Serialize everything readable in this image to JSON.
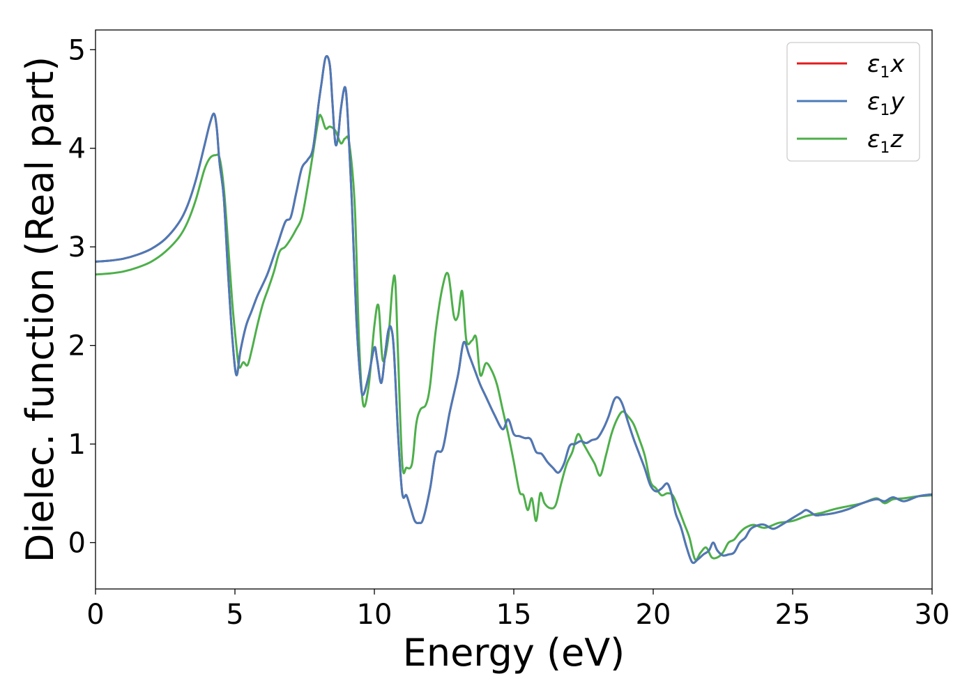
{
  "chart_data": {
    "type": "line",
    "title": "",
    "xlabel": "Energy (eV)",
    "ylabel": "Dielec. function (Real part)",
    "xlim": [
      0,
      30
    ],
    "ylim": [
      -0.47,
      5.2
    ],
    "xticks": [
      0,
      5,
      10,
      15,
      20,
      25,
      30
    ],
    "yticks": [
      0,
      1,
      2,
      3,
      4,
      5
    ],
    "grid": false,
    "legend_position": "top-right",
    "series": [
      {
        "name": "ε1x",
        "name_base": "ε",
        "name_sub": "1",
        "name_var": "x",
        "color": "#e41a1c",
        "x": [
          0,
          0.5,
          1,
          1.5,
          2,
          2.5,
          3,
          3.3,
          3.6,
          3.9,
          4.1,
          4.25,
          4.35,
          4.45,
          4.6,
          4.75,
          4.9,
          5.05,
          5.2,
          5.4,
          5.6,
          5.8,
          6.0,
          6.2,
          6.5,
          6.8,
          7.0,
          7.2,
          7.4,
          7.6,
          7.8,
          8.0,
          8.1,
          8.25,
          8.4,
          8.5,
          8.6,
          8.7,
          8.8,
          8.95,
          9.05,
          9.2,
          9.35,
          9.5,
          9.6,
          9.8,
          10.0,
          10.1,
          10.25,
          10.4,
          10.5,
          10.6,
          10.7,
          10.85,
          11.0,
          11.15,
          11.3,
          11.45,
          11.6,
          11.75,
          12.0,
          12.2,
          12.45,
          12.7,
          13.0,
          13.2,
          13.4,
          13.6,
          13.8,
          14.0,
          14.3,
          14.6,
          14.8,
          15.0,
          15.2,
          15.4,
          15.6,
          15.8,
          16.0,
          16.2,
          16.4,
          16.6,
          16.8,
          17.0,
          17.2,
          17.4,
          17.6,
          17.8,
          18.0,
          18.2,
          18.4,
          18.6,
          18.75,
          18.9,
          19.1,
          19.3,
          19.5,
          19.7,
          19.9,
          20.1,
          20.3,
          20.5,
          20.65,
          20.8,
          21.0,
          21.2,
          21.4,
          21.6,
          21.8,
          22.0,
          22.15,
          22.3,
          22.5,
          22.7,
          22.9,
          23.1,
          23.3,
          23.5,
          23.8,
          24.0,
          24.3,
          24.6,
          25.0,
          25.3,
          25.5,
          25.8,
          26.0,
          26.5,
          27.0,
          27.5,
          28.0,
          28.3,
          28.6,
          29.0,
          29.5,
          30.0
        ],
        "y": [
          2.85,
          2.86,
          2.88,
          2.92,
          2.98,
          3.08,
          3.25,
          3.42,
          3.68,
          4.02,
          4.25,
          4.35,
          4.2,
          3.85,
          3.5,
          2.75,
          2.1,
          1.7,
          1.95,
          2.2,
          2.35,
          2.5,
          2.62,
          2.75,
          3.0,
          3.25,
          3.3,
          3.55,
          3.8,
          3.88,
          4.0,
          4.45,
          4.65,
          4.92,
          4.85,
          4.45,
          4.05,
          4.12,
          4.4,
          4.62,
          4.3,
          3.4,
          2.3,
          1.65,
          1.5,
          1.7,
          1.98,
          1.85,
          1.62,
          1.95,
          2.15,
          2.18,
          1.95,
          1.1,
          0.5,
          0.48,
          0.35,
          0.22,
          0.2,
          0.24,
          0.55,
          0.9,
          0.95,
          1.32,
          1.7,
          2.03,
          1.9,
          1.75,
          1.6,
          1.48,
          1.3,
          1.15,
          1.25,
          1.1,
          1.08,
          1.06,
          1.05,
          0.92,
          0.9,
          0.82,
          0.76,
          0.71,
          0.8,
          0.98,
          1.0,
          1.03,
          1.01,
          1.04,
          1.06,
          1.15,
          1.28,
          1.45,
          1.47,
          1.4,
          1.22,
          1.05,
          0.9,
          0.75,
          0.58,
          0.52,
          0.55,
          0.6,
          0.5,
          0.3,
          0.15,
          -0.05,
          -0.2,
          -0.17,
          -0.12,
          -0.08,
          0.0,
          -0.08,
          -0.13,
          -0.12,
          -0.1,
          0.0,
          0.05,
          0.14,
          0.18,
          0.18,
          0.14,
          0.18,
          0.25,
          0.3,
          0.33,
          0.28,
          0.28,
          0.3,
          0.34,
          0.4,
          0.44,
          0.42,
          0.46,
          0.42,
          0.47,
          0.49
        ]
      },
      {
        "name": "ε1y",
        "name_base": "ε",
        "name_sub": "1",
        "name_var": "y",
        "color": "#4a7ab8",
        "x": [
          0,
          0.5,
          1,
          1.5,
          2,
          2.5,
          3,
          3.3,
          3.6,
          3.9,
          4.1,
          4.25,
          4.35,
          4.45,
          4.6,
          4.75,
          4.9,
          5.05,
          5.2,
          5.4,
          5.6,
          5.8,
          6.0,
          6.2,
          6.5,
          6.8,
          7.0,
          7.2,
          7.4,
          7.6,
          7.8,
          8.0,
          8.1,
          8.25,
          8.4,
          8.5,
          8.6,
          8.7,
          8.8,
          8.95,
          9.05,
          9.2,
          9.35,
          9.5,
          9.6,
          9.8,
          10.0,
          10.1,
          10.25,
          10.4,
          10.5,
          10.6,
          10.7,
          10.85,
          11.0,
          11.15,
          11.3,
          11.45,
          11.6,
          11.75,
          12.0,
          12.2,
          12.45,
          12.7,
          13.0,
          13.2,
          13.4,
          13.6,
          13.8,
          14.0,
          14.3,
          14.6,
          14.8,
          15.0,
          15.2,
          15.4,
          15.6,
          15.8,
          16.0,
          16.2,
          16.4,
          16.6,
          16.8,
          17.0,
          17.2,
          17.4,
          17.6,
          17.8,
          18.0,
          18.2,
          18.4,
          18.6,
          18.75,
          18.9,
          19.1,
          19.3,
          19.5,
          19.7,
          19.9,
          20.1,
          20.3,
          20.5,
          20.65,
          20.8,
          21.0,
          21.2,
          21.4,
          21.6,
          21.8,
          22.0,
          22.15,
          22.3,
          22.5,
          22.7,
          22.9,
          23.1,
          23.3,
          23.5,
          23.8,
          24.0,
          24.3,
          24.6,
          25.0,
          25.3,
          25.5,
          25.8,
          26.0,
          26.5,
          27.0,
          27.5,
          28.0,
          28.3,
          28.6,
          29.0,
          29.5,
          30.0
        ],
        "y": [
          2.85,
          2.86,
          2.88,
          2.92,
          2.98,
          3.08,
          3.25,
          3.42,
          3.68,
          4.02,
          4.25,
          4.35,
          4.2,
          3.85,
          3.5,
          2.75,
          2.1,
          1.7,
          1.95,
          2.2,
          2.35,
          2.5,
          2.62,
          2.75,
          3.0,
          3.25,
          3.3,
          3.55,
          3.8,
          3.88,
          4.0,
          4.45,
          4.65,
          4.92,
          4.85,
          4.45,
          4.05,
          4.12,
          4.4,
          4.62,
          4.3,
          3.4,
          2.3,
          1.65,
          1.5,
          1.7,
          1.98,
          1.85,
          1.62,
          1.95,
          2.15,
          2.18,
          1.95,
          1.1,
          0.5,
          0.48,
          0.35,
          0.22,
          0.2,
          0.24,
          0.55,
          0.9,
          0.95,
          1.32,
          1.7,
          2.03,
          1.9,
          1.75,
          1.6,
          1.48,
          1.3,
          1.15,
          1.25,
          1.1,
          1.08,
          1.06,
          1.05,
          0.92,
          0.9,
          0.82,
          0.76,
          0.71,
          0.8,
          0.98,
          1.0,
          1.03,
          1.01,
          1.04,
          1.06,
          1.15,
          1.28,
          1.45,
          1.47,
          1.4,
          1.22,
          1.05,
          0.9,
          0.75,
          0.58,
          0.52,
          0.55,
          0.6,
          0.5,
          0.3,
          0.15,
          -0.05,
          -0.2,
          -0.17,
          -0.12,
          -0.08,
          0.0,
          -0.08,
          -0.13,
          -0.12,
          -0.1,
          0.0,
          0.05,
          0.14,
          0.18,
          0.18,
          0.14,
          0.18,
          0.25,
          0.3,
          0.33,
          0.28,
          0.28,
          0.3,
          0.34,
          0.4,
          0.44,
          0.42,
          0.46,
          0.42,
          0.47,
          0.49
        ]
      },
      {
        "name": "ε1z",
        "name_base": "ε",
        "name_sub": "1",
        "name_var": "z",
        "color": "#4daf4a",
        "x": [
          0,
          0.5,
          1,
          1.5,
          2,
          2.5,
          3,
          3.3,
          3.6,
          3.9,
          4.1,
          4.3,
          4.45,
          4.6,
          4.75,
          4.9,
          5.05,
          5.15,
          5.3,
          5.45,
          5.6,
          5.8,
          6.0,
          6.2,
          6.4,
          6.6,
          6.8,
          7.0,
          7.2,
          7.4,
          7.6,
          7.8,
          8.0,
          8.1,
          8.25,
          8.4,
          8.6,
          8.8,
          8.95,
          9.1,
          9.3,
          9.45,
          9.6,
          9.8,
          10.0,
          10.15,
          10.3,
          10.5,
          10.65,
          10.75,
          10.85,
          11.0,
          11.15,
          11.35,
          11.5,
          11.65,
          11.85,
          12.0,
          12.2,
          12.45,
          12.65,
          12.85,
          13.0,
          13.15,
          13.3,
          13.5,
          13.65,
          13.8,
          14.0,
          14.2,
          14.4,
          14.6,
          14.8,
          15.0,
          15.2,
          15.35,
          15.5,
          15.65,
          15.8,
          15.95,
          16.1,
          16.3,
          16.5,
          16.7,
          16.9,
          17.1,
          17.3,
          17.5,
          17.7,
          17.9,
          18.1,
          18.3,
          18.5,
          18.7,
          18.9,
          19.1,
          19.3,
          19.5,
          19.7,
          19.9,
          20.1,
          20.3,
          20.5,
          20.7,
          20.9,
          21.1,
          21.3,
          21.5,
          21.7,
          21.9,
          22.1,
          22.3,
          22.5,
          22.7,
          22.9,
          23.1,
          23.3,
          23.6,
          24.0,
          24.5,
          25.0,
          25.5,
          26.0,
          26.5,
          27.0,
          27.5,
          28.0,
          28.3,
          28.6,
          29.0,
          29.5,
          30.0
        ],
        "y": [
          2.72,
          2.73,
          2.75,
          2.79,
          2.85,
          2.95,
          3.1,
          3.25,
          3.48,
          3.78,
          3.9,
          3.93,
          3.9,
          3.6,
          3.05,
          2.45,
          2.0,
          1.78,
          1.83,
          1.8,
          1.95,
          2.2,
          2.42,
          2.58,
          2.75,
          2.95,
          3.0,
          3.08,
          3.18,
          3.3,
          3.6,
          3.95,
          4.3,
          4.32,
          4.2,
          4.22,
          4.18,
          4.05,
          4.1,
          4.05,
          3.4,
          2.05,
          1.4,
          1.6,
          2.2,
          2.4,
          1.85,
          2.08,
          2.6,
          2.65,
          1.9,
          0.8,
          0.76,
          0.8,
          1.2,
          1.35,
          1.4,
          1.6,
          2.15,
          2.6,
          2.72,
          2.3,
          2.3,
          2.55,
          2.05,
          2.05,
          2.08,
          1.7,
          1.82,
          1.75,
          1.6,
          1.35,
          1.1,
          0.82,
          0.52,
          0.48,
          0.33,
          0.45,
          0.22,
          0.5,
          0.4,
          0.35,
          0.38,
          0.6,
          0.8,
          0.92,
          1.1,
          1.0,
          0.9,
          0.8,
          0.68,
          0.88,
          1.1,
          1.25,
          1.33,
          1.28,
          1.2,
          1.05,
          0.88,
          0.62,
          0.55,
          0.48,
          0.5,
          0.48,
          0.35,
          0.2,
          0.05,
          -0.17,
          -0.1,
          -0.05,
          -0.15,
          -0.15,
          -0.1,
          0.0,
          0.03,
          0.1,
          0.15,
          0.18,
          0.15,
          0.2,
          0.22,
          0.27,
          0.3,
          0.34,
          0.37,
          0.4,
          0.45,
          0.4,
          0.44,
          0.45,
          0.47,
          0.48
        ]
      }
    ]
  }
}
